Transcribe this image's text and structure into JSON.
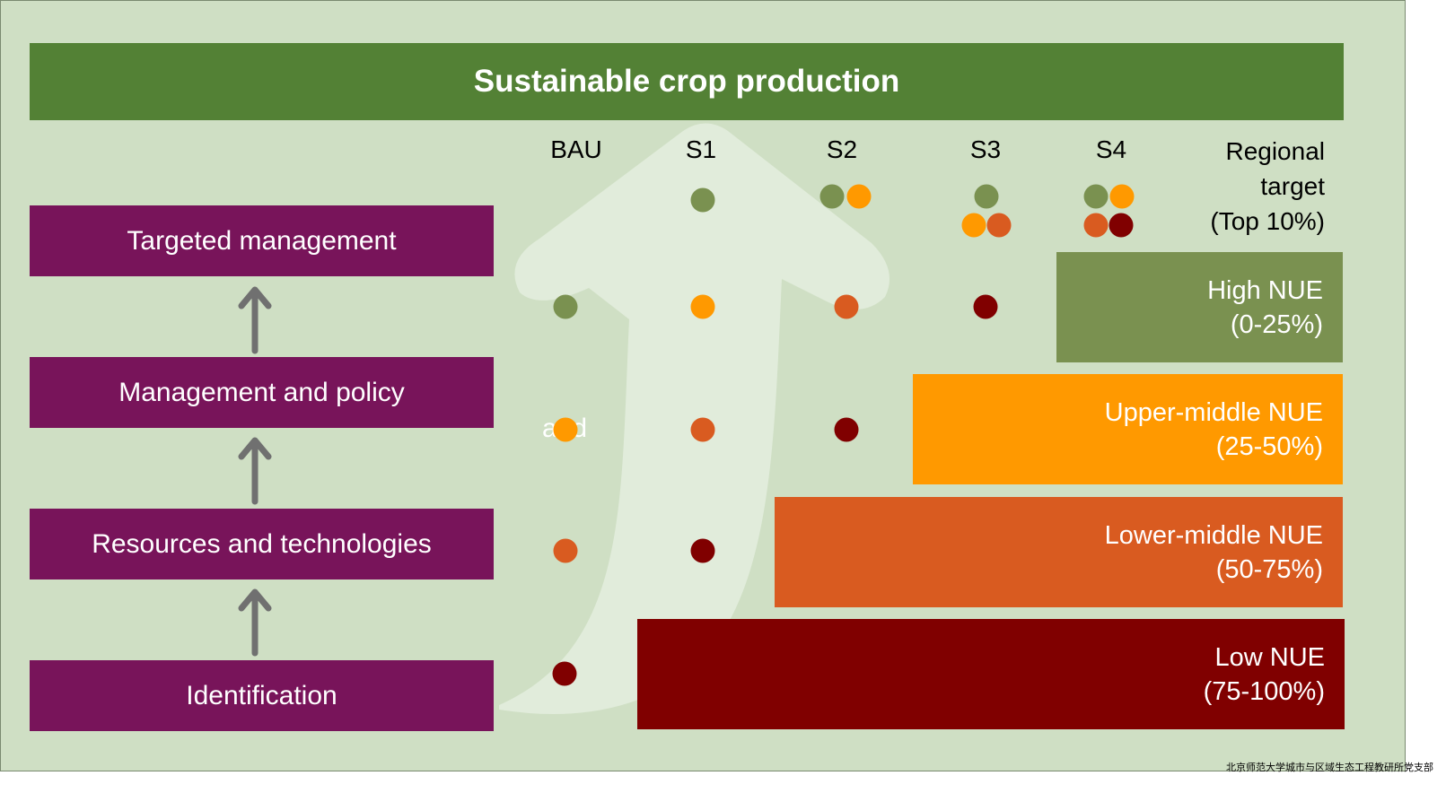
{
  "title": "Sustainable crop production",
  "columns": [
    "BAU",
    "S1",
    "S2",
    "S3",
    "S4"
  ],
  "regional_target": [
    "Regional",
    "target",
    "(Top 10%)"
  ],
  "stages": [
    "Targeted management",
    "Management and policy",
    "Resources and technologies",
    "Identification"
  ],
  "nue_levels": [
    {
      "name": "High NUE",
      "range": "(0-25%)",
      "color": "#7A9150"
    },
    {
      "name": "Upper-middle NUE",
      "range": "(25-50%)",
      "color": "#FF9900"
    },
    {
      "name": "Lower-middle NUE",
      "range": "(50-75%)",
      "color": "#D95B20"
    },
    {
      "name": "Low NUE",
      "range": "(75-100%)",
      "color": "#800000"
    }
  ],
  "stray_text": "and",
  "watermark": "北京师范大学城市与区域生态工程教研所党支部"
}
